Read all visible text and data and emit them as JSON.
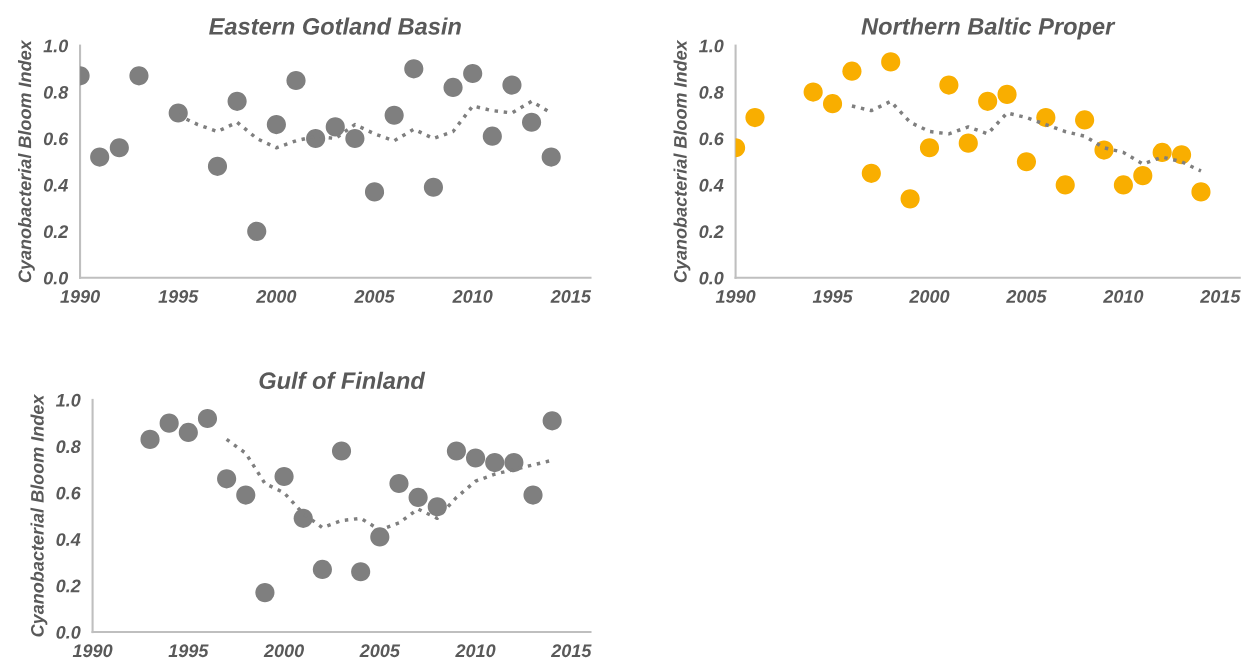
{
  "chart_data": [
    {
      "type": "scatter",
      "title": "Eastern Gotland Basin",
      "ylabel": "Cyanobacterial Bloom Index",
      "xlim": [
        1990,
        2016
      ],
      "xticks": [
        1990,
        1995,
        2000,
        2005,
        2010,
        2015
      ],
      "ylim": [
        0,
        1
      ],
      "yticks": [
        {
          "value": 0,
          "label": "0.0"
        },
        {
          "value": 0.2,
          "label": "0.2"
        },
        {
          "value": 0.4,
          "label": "0.4"
        },
        {
          "value": 0.6,
          "label": "0.6"
        },
        {
          "value": 0.8,
          "label": "0.8"
        },
        {
          "value": 1,
          "label": "1.0"
        }
      ],
      "grid": false,
      "legend": false,
      "series": [
        {
          "marker": "circle",
          "color": "#7f7f7f",
          "x": [
            1990,
            1991,
            1992,
            1993,
            1995,
            1997,
            1998,
            1999,
            2000,
            2001,
            2002,
            2003,
            2004,
            2005,
            2006,
            2007,
            2008,
            2009,
            2010,
            2011,
            2012,
            2013,
            2014
          ],
          "values": [
            0.87,
            0.52,
            0.56,
            0.87,
            0.71,
            0.48,
            0.76,
            0.2,
            0.66,
            0.85,
            0.6,
            0.65,
            0.6,
            0.37,
            0.7,
            0.9,
            0.39,
            0.82,
            0.88,
            0.61,
            0.83,
            0.67,
            0.52
          ]
        },
        {
          "type": "line",
          "line_style": "dotted",
          "marker": "none",
          "color": "#7f7f7f",
          "x": [
            1995,
            1996,
            1997,
            1998,
            1999,
            2000,
            2001,
            2002,
            2003,
            2004,
            2005,
            2006,
            2007,
            2008,
            2009,
            2010,
            2011,
            2012,
            2013,
            2014
          ],
          "values": [
            0.7,
            0.66,
            0.63,
            0.67,
            0.6,
            0.56,
            0.59,
            0.61,
            0.6,
            0.66,
            0.62,
            0.59,
            0.64,
            0.6,
            0.63,
            0.74,
            0.72,
            0.71,
            0.76,
            0.71
          ]
        }
      ]
    },
    {
      "type": "scatter",
      "title": "Northern Baltic Proper",
      "ylabel": "Cyanobacterial Bloom Index",
      "xlim": [
        1990,
        2016
      ],
      "xticks": [
        1990,
        1995,
        2000,
        2005,
        2010,
        2015
      ],
      "ylim": [
        0,
        1
      ],
      "yticks": [
        {
          "value": 0,
          "label": "0.0"
        },
        {
          "value": 0.2,
          "label": "0.2"
        },
        {
          "value": 0.4,
          "label": "0.4"
        },
        {
          "value": 0.6,
          "label": "0.6"
        },
        {
          "value": 0.8,
          "label": "0.8"
        },
        {
          "value": 1,
          "label": "1.0"
        }
      ],
      "grid": false,
      "legend": false,
      "series": [
        {
          "marker": "circle",
          "color": "#f9ae00",
          "x": [
            1990,
            1991,
            1994,
            1995,
            1996,
            1997,
            1998,
            1999,
            2000,
            2001,
            2002,
            2003,
            2004,
            2005,
            2006,
            2007,
            2008,
            2009,
            2010,
            2011,
            2012,
            2013,
            2014
          ],
          "values": [
            0.56,
            0.69,
            0.8,
            0.75,
            0.89,
            0.45,
            0.93,
            0.34,
            0.56,
            0.83,
            0.58,
            0.76,
            0.79,
            0.5,
            0.69,
            0.4,
            0.68,
            0.55,
            0.4,
            0.44,
            0.54,
            0.53,
            0.37
          ]
        },
        {
          "type": "line",
          "line_style": "dotted",
          "marker": "none",
          "color": "#7f7f7f",
          "x": [
            1996,
            1997,
            1998,
            1999,
            2000,
            2001,
            2002,
            2003,
            2004,
            2005,
            2006,
            2007,
            2008,
            2009,
            2010,
            2011,
            2012,
            2013,
            2014
          ],
          "values": [
            0.74,
            0.72,
            0.76,
            0.67,
            0.63,
            0.62,
            0.65,
            0.62,
            0.71,
            0.69,
            0.66,
            0.63,
            0.61,
            0.56,
            0.54,
            0.49,
            0.52,
            0.5,
            0.46
          ]
        }
      ]
    },
    {
      "type": "scatter",
      "title": "Gulf of Finland",
      "ylabel": "Cyanobacterial Bloom Index",
      "xlim": [
        1990,
        2016
      ],
      "xticks": [
        1990,
        1995,
        2000,
        2005,
        2010,
        2015
      ],
      "ylim": [
        0,
        1
      ],
      "yticks": [
        {
          "value": 0,
          "label": "0.0"
        },
        {
          "value": 0.2,
          "label": "0.2"
        },
        {
          "value": 0.4,
          "label": "0.4"
        },
        {
          "value": 0.6,
          "label": "0.6"
        },
        {
          "value": 0.8,
          "label": "0.8"
        },
        {
          "value": 1,
          "label": "1.0"
        }
      ],
      "grid": false,
      "legend": false,
      "series": [
        {
          "marker": "circle",
          "color": "#7f7f7f",
          "x": [
            1993,
            1994,
            1995,
            1996,
            1997,
            1998,
            1999,
            2000,
            2001,
            2002,
            2003,
            2004,
            2005,
            2006,
            2007,
            2008,
            2009,
            2010,
            2011,
            2012,
            2013,
            2014
          ],
          "values": [
            0.83,
            0.9,
            0.86,
            0.92,
            0.66,
            0.59,
            0.17,
            0.67,
            0.49,
            0.27,
            0.78,
            0.26,
            0.41,
            0.64,
            0.58,
            0.54,
            0.78,
            0.75,
            0.73,
            0.73,
            0.59,
            0.91
          ]
        },
        {
          "type": "line",
          "line_style": "dotted",
          "marker": "none",
          "color": "#7f7f7f",
          "x": [
            1997,
            1998,
            1999,
            2000,
            2001,
            2002,
            2003,
            2004,
            2005,
            2006,
            2007,
            2008,
            2009,
            2010,
            2011,
            2012,
            2013,
            2014
          ],
          "values": [
            0.83,
            0.77,
            0.64,
            0.6,
            0.51,
            0.45,
            0.48,
            0.49,
            0.44,
            0.47,
            0.53,
            0.49,
            0.58,
            0.65,
            0.68,
            0.7,
            0.72,
            0.74
          ]
        }
      ]
    }
  ]
}
